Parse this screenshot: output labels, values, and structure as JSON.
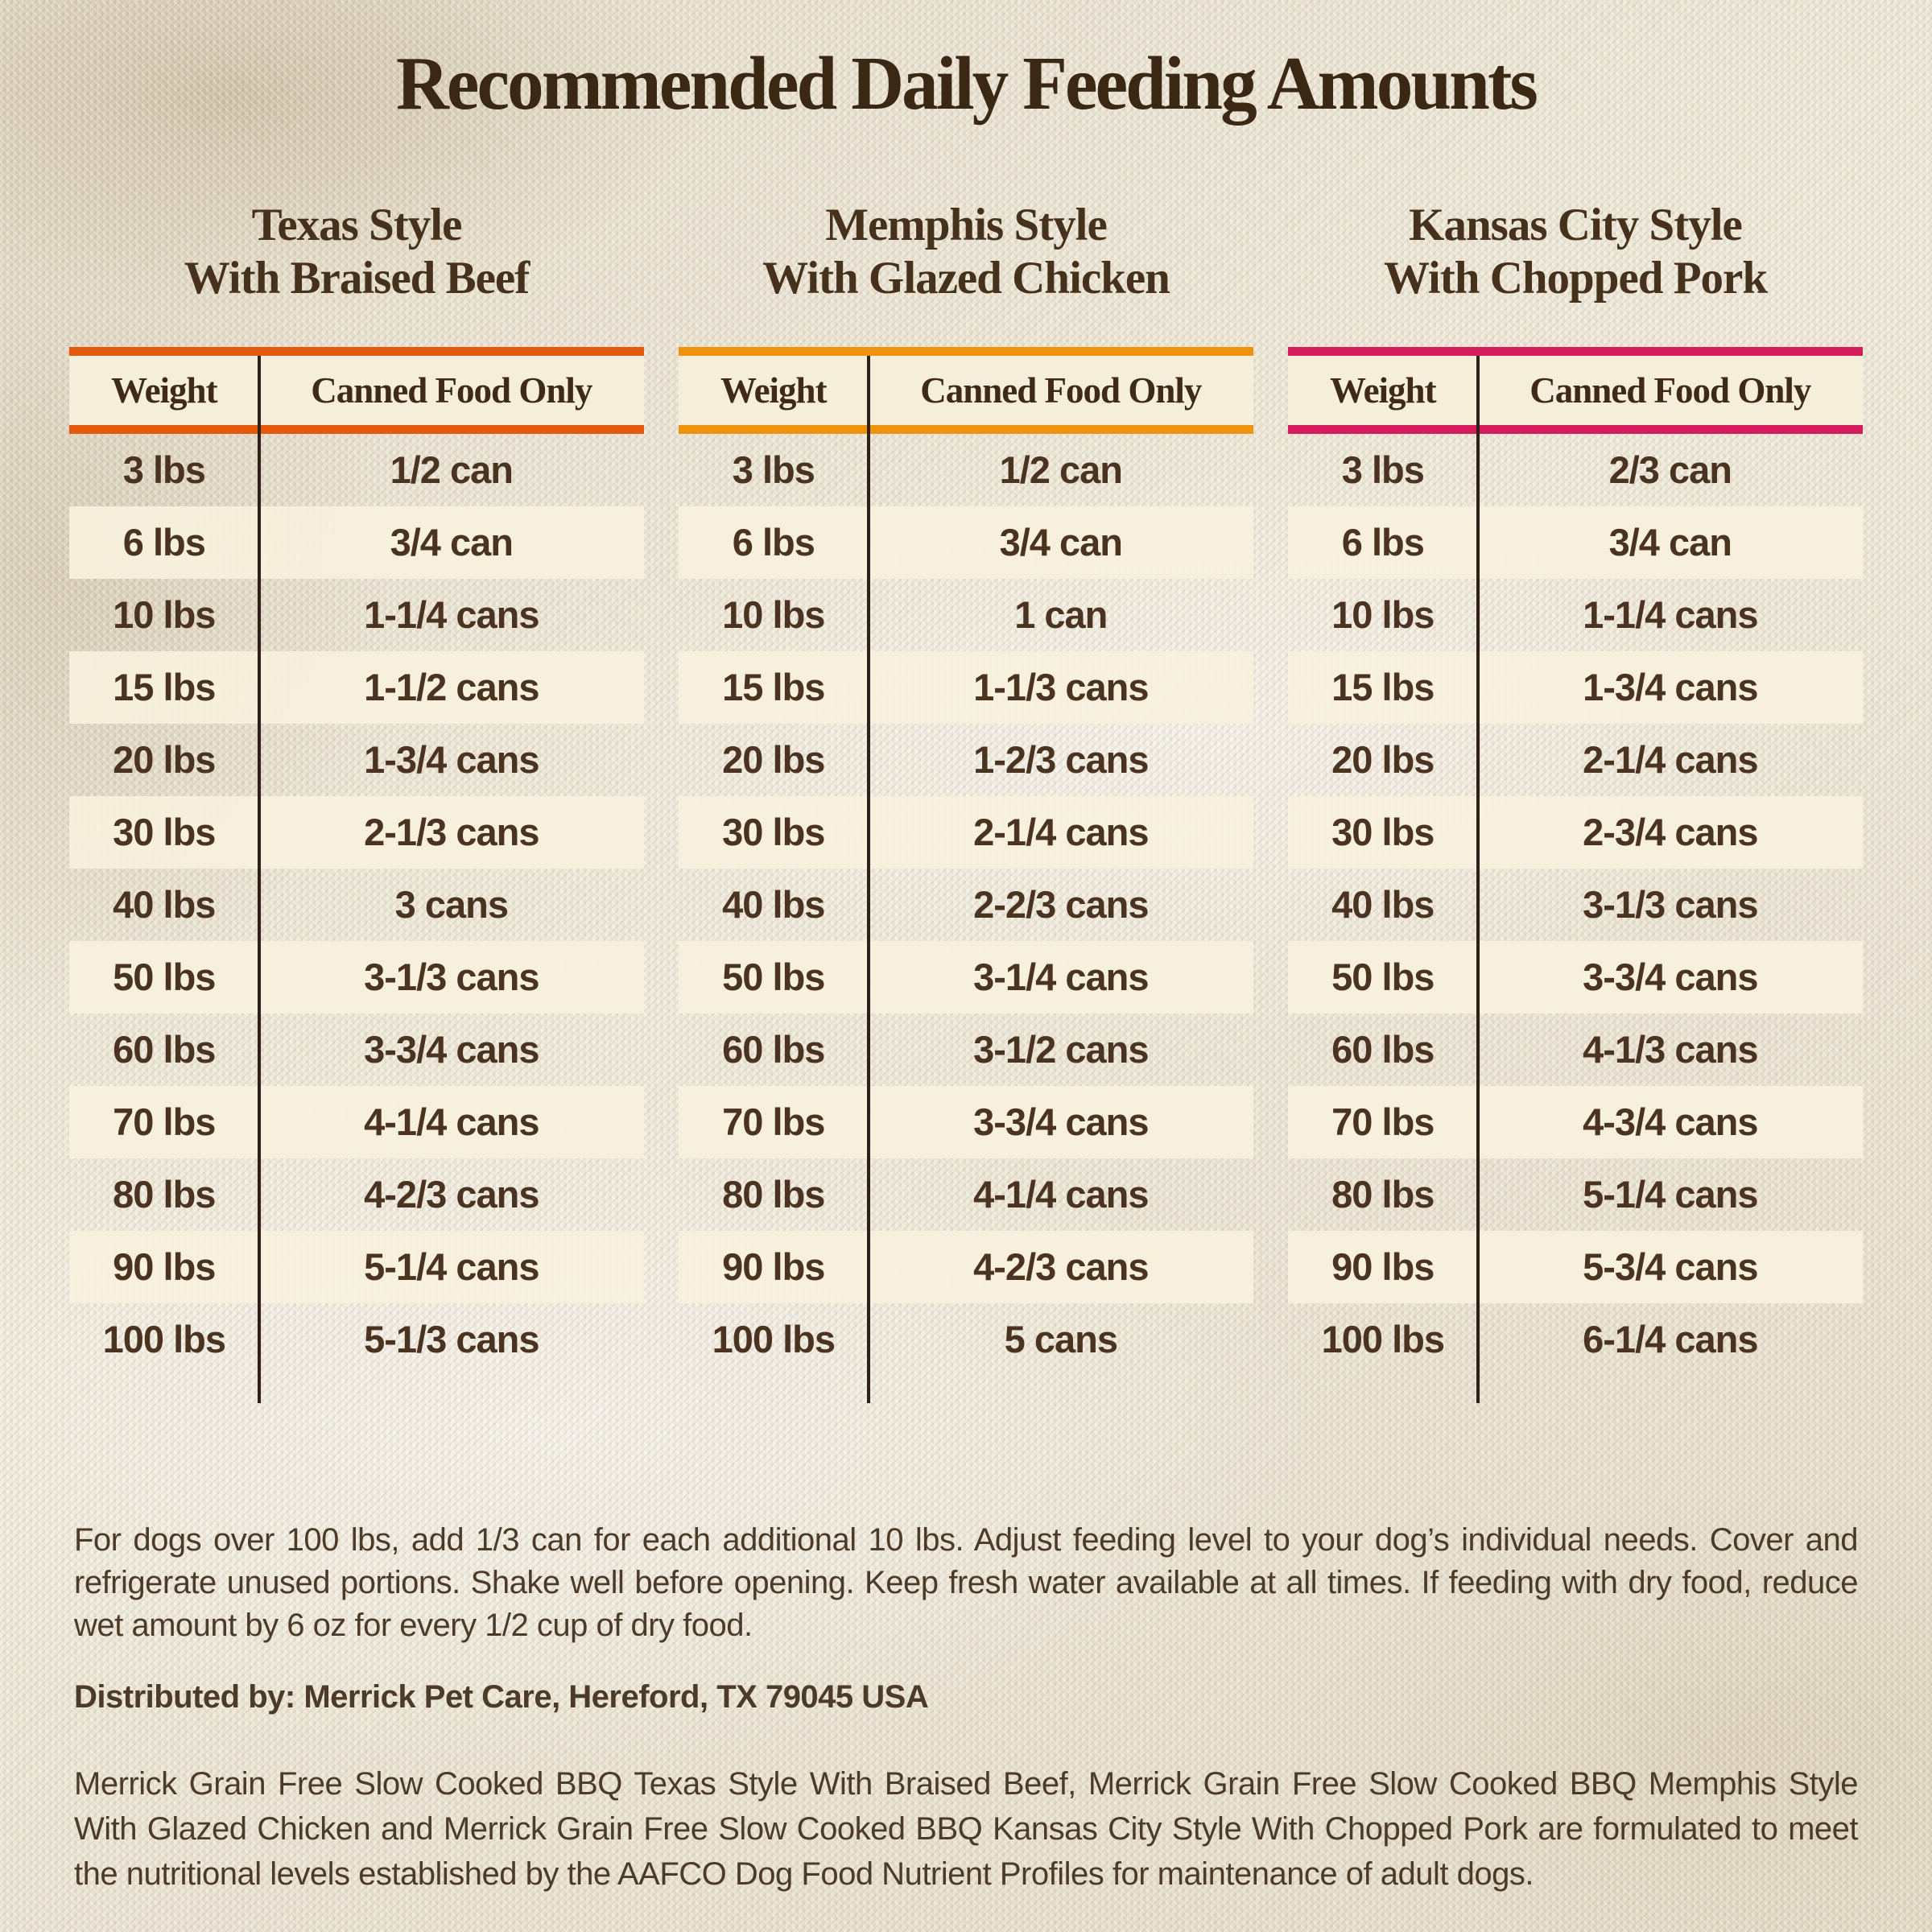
{
  "title": "Recommended Daily Feeding Amounts",
  "tables": [
    {
      "name": "Texas Style With Braised Beef",
      "title_line1": "Texas Style",
      "title_line2": "With Braised Beef",
      "accent_color": "#e3590d",
      "columns": [
        "Weight",
        "Canned Food Only"
      ],
      "rows": [
        [
          "3 lbs",
          "1/2 can"
        ],
        [
          "6 lbs",
          "3/4 can"
        ],
        [
          "10 lbs",
          "1-1/4 cans"
        ],
        [
          "15 lbs",
          "1-1/2 cans"
        ],
        [
          "20 lbs",
          "1-3/4 cans"
        ],
        [
          "30 lbs",
          "2-1/3 cans"
        ],
        [
          "40 lbs",
          "3 cans"
        ],
        [
          "50 lbs",
          "3-1/3 cans"
        ],
        [
          "60 lbs",
          "3-3/4 cans"
        ],
        [
          "70 lbs",
          "4-1/4 cans"
        ],
        [
          "80 lbs",
          "4-2/3 cans"
        ],
        [
          "90 lbs",
          "5-1/4 cans"
        ],
        [
          "100 lbs",
          "5-1/3 cans"
        ]
      ]
    },
    {
      "name": "Memphis Style With Glazed Chicken",
      "title_line1": "Memphis Style",
      "title_line2": "With Glazed Chicken",
      "accent_color": "#ef930f",
      "columns": [
        "Weight",
        "Canned Food Only"
      ],
      "rows": [
        [
          "3 lbs",
          "1/2 can"
        ],
        [
          "6 lbs",
          "3/4 can"
        ],
        [
          "10 lbs",
          "1 can"
        ],
        [
          "15 lbs",
          "1-1/3 cans"
        ],
        [
          "20 lbs",
          "1-2/3 cans"
        ],
        [
          "30 lbs",
          "2-1/4 cans"
        ],
        [
          "40 lbs",
          "2-2/3 cans"
        ],
        [
          "50 lbs",
          "3-1/4 cans"
        ],
        [
          "60 lbs",
          "3-1/2 cans"
        ],
        [
          "70 lbs",
          "3-3/4 cans"
        ],
        [
          "80 lbs",
          "4-1/4 cans"
        ],
        [
          "90 lbs",
          "4-2/3 cans"
        ],
        [
          "100 lbs",
          "5 cans"
        ]
      ]
    },
    {
      "name": "Kansas City Style With Chopped Pork",
      "title_line1": "Kansas City Style",
      "title_line2": "With Chopped Pork",
      "accent_color": "#d41c5b",
      "columns": [
        "Weight",
        "Canned Food Only"
      ],
      "rows": [
        [
          "3 lbs",
          "2/3 can"
        ],
        [
          "6 lbs",
          "3/4 can"
        ],
        [
          "10 lbs",
          "1-1/4 cans"
        ],
        [
          "15 lbs",
          "1-3/4 cans"
        ],
        [
          "20 lbs",
          "2-1/4 cans"
        ],
        [
          "30 lbs",
          "2-3/4 cans"
        ],
        [
          "40 lbs",
          "3-1/3 cans"
        ],
        [
          "50 lbs",
          "3-3/4 cans"
        ],
        [
          "60 lbs",
          "4-1/3 cans"
        ],
        [
          "70 lbs",
          "4-3/4 cans"
        ],
        [
          "80 lbs",
          "5-1/4 cans"
        ],
        [
          "90 lbs",
          "5-3/4 cans"
        ],
        [
          "100 lbs",
          "6-1/4 cans"
        ]
      ]
    }
  ],
  "notes": {
    "feeding_note": "For dogs over 100 lbs, add 1/3 can for each additional 10 lbs. Adjust feeding level to your dog’s individual needs. Cover and refrigerate unused portions. Shake well before opening. Keep fresh water available at all times. If feeding with dry food, reduce wet amount by 6 oz for every 1/2 cup of dry food.",
    "distributor": "Distributed by: Merrick Pet Care, Hereford, TX 79045 USA",
    "aafco_statement": "Merrick Grain Free Slow Cooked BBQ Texas Style With Braised Beef, Merrick Grain Free Slow Cooked BBQ Memphis Style With Glazed Chicken and Merrick Grain Free Slow Cooked BBQ Kansas City Style With Chopped Pork are formulated to meet the nutritional levels established by the AAFCO Dog Food Nutrient Profiles for maintenance of adult dogs."
  },
  "colors": {
    "text_dark_brown": "#3a2815",
    "row_text_brown": "#4b3322",
    "cream_band": "#f5eedb",
    "divider": "#2f211a",
    "texas_accent": "#e3590d",
    "memphis_accent": "#ef930f",
    "kansas_city_accent": "#d41c5b"
  }
}
